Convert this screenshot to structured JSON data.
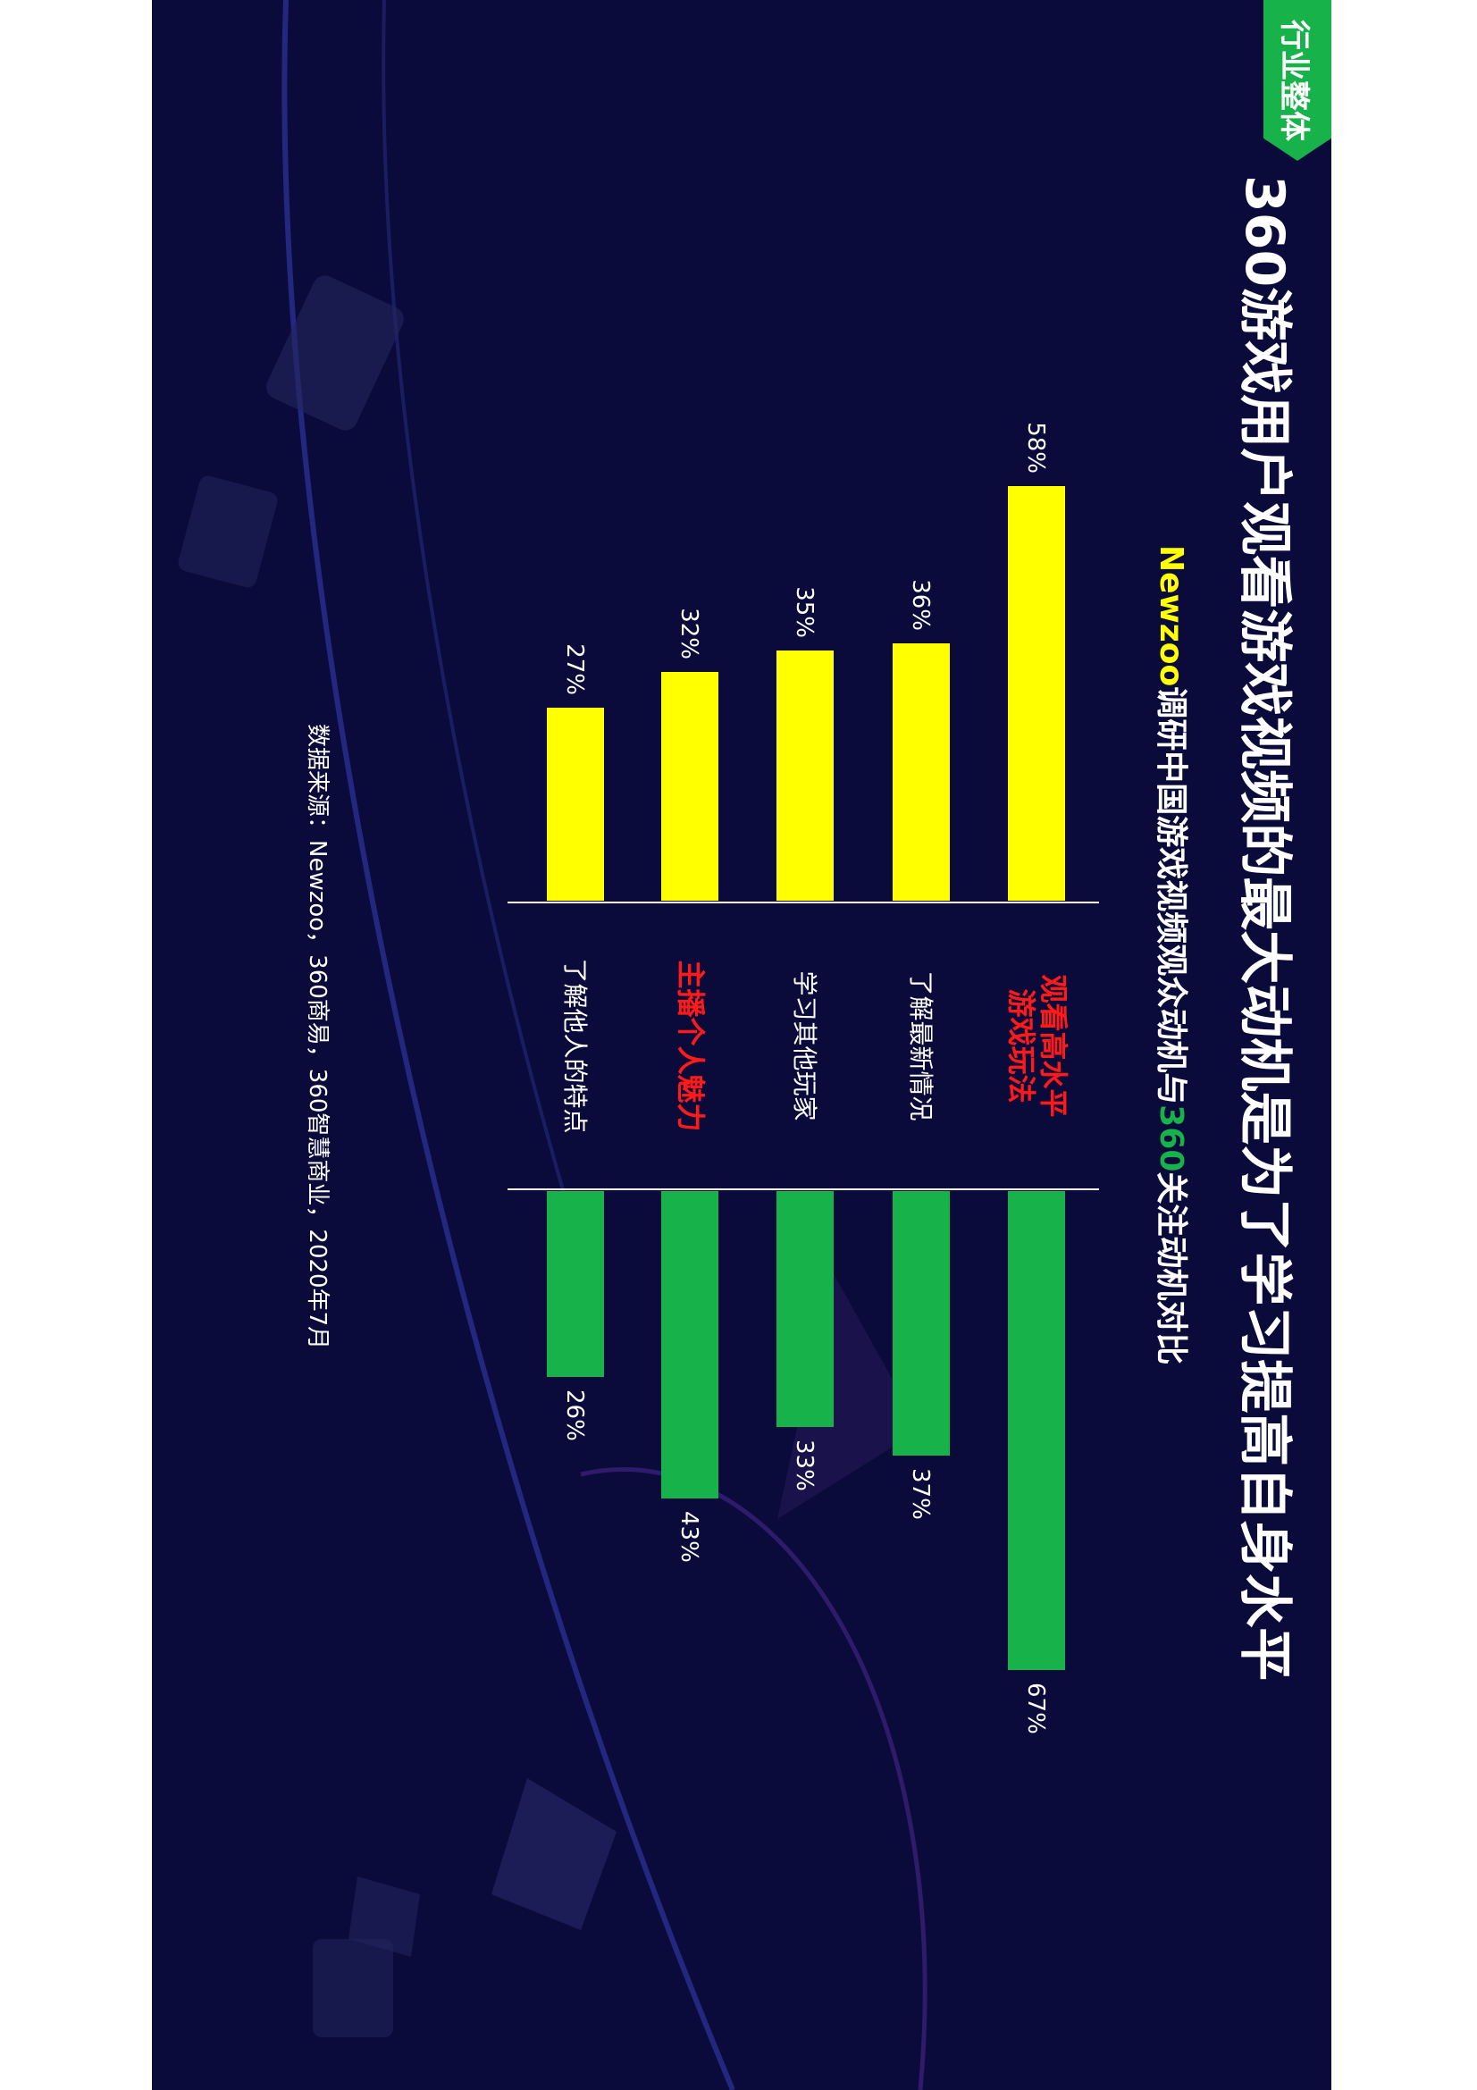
{
  "header": {
    "tag": "行业整体",
    "title": "360游戏用户观看游戏视频的最大动机是为了学习提高自身水平",
    "subtitle_prefix": "Newzoo",
    "subtitle_mid": "调研中国游戏视频观众动机与",
    "subtitle_360": "360",
    "subtitle_suffix": "关注动机对比"
  },
  "footer": {
    "source": "数据来源：Newzoo，360商易，360智慧商业，2020年7月"
  },
  "colors": {
    "background": "#0a0b3a",
    "newzoo": "#ffff00",
    "c360": "#17b24a",
    "highlight": "#ff1a1a",
    "tag": "#17b24a"
  },
  "chart_data": {
    "type": "bar",
    "orientation": "mirrored-horizontal",
    "categories": [
      {
        "label_lines": [
          "观看高水平",
          "游戏玩法"
        ],
        "highlight": true
      },
      {
        "label_lines": [
          "了解最新情况"
        ],
        "highlight": false
      },
      {
        "label_lines": [
          "学习其他玩家"
        ],
        "highlight": false
      },
      {
        "label_lines": [
          "主播个人魅力"
        ],
        "highlight": true
      },
      {
        "label_lines": [
          "了解他人的特点"
        ],
        "highlight": false
      }
    ],
    "series": [
      {
        "values": [
          58,
          36,
          35,
          32,
          27
        ],
        "labels": [
          "58%",
          "36%",
          "35%",
          "32%",
          "27%"
        ],
        "color": "#ffff00"
      },
      {
        "values": [
          67,
          37,
          33,
          43,
          26
        ],
        "labels": [
          "67%",
          "37%",
          "33%",
          "43%",
          "26%"
        ],
        "color": "#17b24a"
      }
    ],
    "xlim": [
      0,
      70
    ],
    "grid": false
  }
}
